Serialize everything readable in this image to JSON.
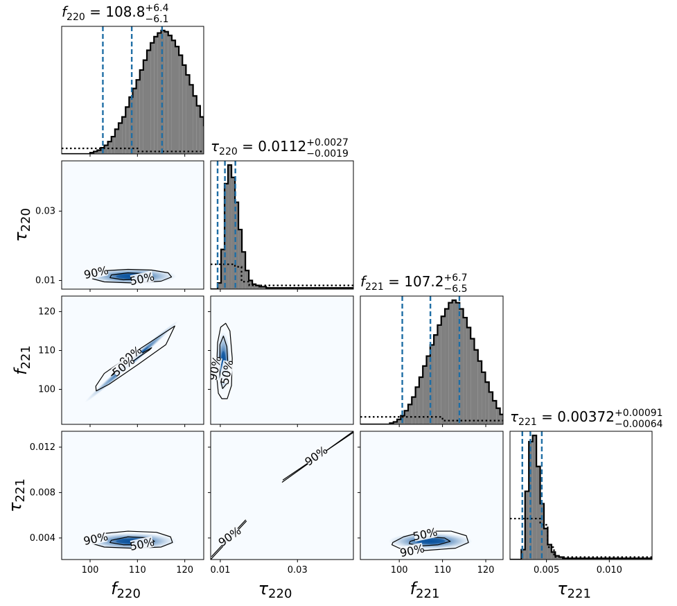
{
  "chart_data": {
    "type": "corner",
    "parameters": [
      {
        "symbol": "f",
        "subscript": "220",
        "label": "f220",
        "range": [
          94,
          124
        ],
        "ticks": [
          100,
          110,
          120
        ],
        "tick_labels": [
          "100",
          "110",
          "120"
        ],
        "median": 108.8,
        "plus": "+6.4",
        "minus": "−6.1",
        "title_value": "108.8",
        "quantiles": [
          102.7,
          108.8,
          115.2
        ]
      },
      {
        "symbol": "τ",
        "subscript": "220",
        "label": "τ220",
        "range": [
          0.0075,
          0.0445
        ],
        "ticks": [
          0.01,
          0.03
        ],
        "tick_labels": [
          "0.01",
          "0.03"
        ],
        "median": 0.0112,
        "plus": "+0.0027",
        "minus": "−0.0019",
        "title_value": "0.0112",
        "quantiles": [
          0.0093,
          0.0112,
          0.0139
        ]
      },
      {
        "symbol": "f",
        "subscript": "221",
        "label": "f221",
        "range": [
          91,
          124
        ],
        "ticks": [
          100,
          110,
          120
        ],
        "tick_labels": [
          "100",
          "110",
          "120"
        ],
        "median": 107.2,
        "plus": "+6.7",
        "minus": "−6.5",
        "title_value": "107.2",
        "quantiles": [
          100.7,
          107.2,
          113.9
        ]
      },
      {
        "symbol": "τ",
        "subscript": "221",
        "label": "τ221",
        "range": [
          0.0021,
          0.0134
        ],
        "ticks": [
          0.005,
          0.01
        ],
        "tick_labels": [
          "0.005",
          "0.010"
        ],
        "median": 0.00372,
        "plus": "+0.00091",
        "minus": "−0.00064",
        "title_value": "0.00372",
        "quantiles": [
          0.00308,
          0.00372,
          0.00463
        ]
      }
    ],
    "row_ticks": [
      null,
      {
        "ticks": [
          0.01,
          0.03
        ],
        "tick_labels": [
          "0.01",
          "0.03"
        ]
      },
      {
        "ticks": [
          100,
          110,
          120
        ],
        "tick_labels": [
          "100",
          "110",
          "120"
        ]
      },
      {
        "ticks": [
          0.004,
          0.008,
          0.012
        ],
        "tick_labels": [
          "0.004",
          "0.008",
          "0.012"
        ]
      }
    ],
    "contour_levels": [
      "50%",
      "90%"
    ],
    "colors": {
      "hist_fill": "#808080",
      "hist_edge": "#000000",
      "quantile_line": "#1f6ea5",
      "prior_line": "#000000",
      "density": "#08519c",
      "background": "#f7fbff"
    },
    "diagonal_panels": [
      {
        "param": 0,
        "prior_level": 0.045,
        "hist": {
          "start": 94,
          "bin": 0.75,
          "values": [
            0,
            0,
            0,
            0,
            0,
            0,
            0,
            0,
            0.01,
            0.02,
            0.03,
            0.05,
            0.07,
            0.1,
            0.14,
            0.2,
            0.25,
            0.3,
            0.38,
            0.46,
            0.53,
            0.6,
            0.68,
            0.76,
            0.84,
            0.9,
            0.95,
            0.98,
            1,
            0.99,
            0.96,
            0.92,
            0.87,
            0.8,
            0.72,
            0.64,
            0.56,
            0.47,
            0.39,
            0.3,
            0.23,
            0.17,
            0.12,
            0.08,
            0.05,
            0.03,
            0.02,
            0.01,
            0.01,
            0,
            0,
            0,
            0,
            0,
            0,
            0,
            0,
            0,
            0,
            0
          ]
        },
        "prior": [
          {
            "x": 94,
            "y": 0.045
          },
          {
            "x": 110,
            "y": 0.045
          },
          {
            "x": 110,
            "y": 0.02
          },
          {
            "x": 124,
            "y": 0.02
          }
        ]
      },
      {
        "param": 1,
        "prior_level": 0.2,
        "hist": {
          "start": 0.0075,
          "bin": 0.0009,
          "values": [
            0,
            0,
            0.05,
            0.32,
            0.85,
            1,
            0.9,
            0.7,
            0.48,
            0.3,
            0.15,
            0.07,
            0.04,
            0.03,
            0.02,
            0.02,
            0.01,
            0.01,
            0.01,
            0.01,
            0.01,
            0.01,
            0.01,
            0.01,
            0.01,
            0.01,
            0.01,
            0.01,
            0.01,
            0.01,
            0.01,
            0.01,
            0.01,
            0.01,
            0.01,
            0.01,
            0.01,
            0.01,
            0.01,
            0.01,
            0.01
          ]
        },
        "prior": [
          {
            "x": 0.0075,
            "y": 0.2
          },
          {
            "x": 0.0138,
            "y": 0.2
          },
          {
            "x": 0.0138,
            "y": 0.18
          },
          {
            "x": 0.0155,
            "y": 0.18
          },
          {
            "x": 0.0155,
            "y": 0.06
          },
          {
            "x": 0.0175,
            "y": 0.06
          },
          {
            "x": 0.0175,
            "y": 0.03
          },
          {
            "x": 0.0445,
            "y": 0.03
          }
        ]
      },
      {
        "param": 2,
        "prior_level": 0.06,
        "hist": {
          "start": 91,
          "bin": 0.85,
          "values": [
            0,
            0,
            0,
            0,
            0,
            0,
            0,
            0,
            0.01,
            0.02,
            0.04,
            0.07,
            0.11,
            0.16,
            0.22,
            0.3,
            0.38,
            0.47,
            0.55,
            0.64,
            0.72,
            0.8,
            0.87,
            0.93,
            0.98,
            1,
            0.98,
            0.93,
            0.86,
            0.78,
            0.69,
            0.6,
            0.51,
            0.42,
            0.34,
            0.26,
            0.19,
            0.13,
            0.08,
            0.05,
            0.03,
            0.02,
            0.01,
            0,
            0,
            0,
            0,
            0,
            0,
            0
          ]
        },
        "prior": [
          {
            "x": 91,
            "y": 0.06
          },
          {
            "x": 110,
            "y": 0.06
          },
          {
            "x": 110,
            "y": 0.03
          },
          {
            "x": 124,
            "y": 0.03
          }
        ]
      },
      {
        "param": 3,
        "prior_level": 0.33,
        "hist": {
          "start": 0.0021,
          "bin": 0.0003,
          "values": [
            0,
            0,
            0,
            0.08,
            0.55,
            0.95,
            1,
            0.75,
            0.45,
            0.25,
            0.12,
            0.06,
            0.03,
            0.02,
            0.01,
            0.01,
            0.01,
            0.01,
            0.01,
            0.01,
            0.01,
            0.01,
            0.01,
            0.01,
            0.01,
            0.01,
            0.01,
            0.01,
            0.01,
            0.01,
            0.01,
            0.01,
            0.01,
            0.01,
            0.01,
            0.01,
            0.01,
            0.01
          ]
        },
        "prior": [
          {
            "x": 0.0021,
            "y": 0.33
          },
          {
            "x": 0.0045,
            "y": 0.33
          },
          {
            "x": 0.0045,
            "y": 0.28
          },
          {
            "x": 0.0051,
            "y": 0.28
          },
          {
            "x": 0.0051,
            "y": 0.1
          },
          {
            "x": 0.0056,
            "y": 0.1
          },
          {
            "x": 0.0056,
            "y": 0.02
          },
          {
            "x": 0.0134,
            "y": 0.02
          }
        ]
      }
    ],
    "offdiagonal_panels": [
      {
        "row": 1,
        "col": 0,
        "x_param": 0,
        "y_param": 1,
        "density": {
          "cx": 108.8,
          "cy": 0.0112,
          "sx": 4.5,
          "sy": 0.0011,
          "rho": 0.1
        },
        "contour90": [
          [
            100.5,
            0.0118
          ],
          [
            103,
            0.0128
          ],
          [
            108,
            0.0132
          ],
          [
            113,
            0.013
          ],
          [
            116.5,
            0.0122
          ],
          [
            117.2,
            0.011
          ],
          [
            115,
            0.0098
          ],
          [
            109,
            0.0093
          ],
          [
            103,
            0.0096
          ],
          [
            100.5,
            0.0105
          ]
        ],
        "contour50": [
          [
            104.5,
            0.0116
          ],
          [
            108,
            0.0122
          ],
          [
            112,
            0.0119
          ],
          [
            113.2,
            0.0112
          ],
          [
            111,
            0.0104
          ],
          [
            107,
            0.0102
          ],
          [
            104.2,
            0.0108
          ]
        ],
        "labels": [
          {
            "text": "90%",
            "x": 101.3,
            "y": 0.0122,
            "rot": -12
          },
          {
            "text": "50%",
            "x": 111,
            "y": 0.01035,
            "rot": -12
          }
        ]
      },
      {
        "row": 2,
        "col": 0,
        "x_param": 0,
        "y_param": 2,
        "density": {
          "cx": 108.8,
          "cy": 107.2,
          "sx": 4.5,
          "sy": 4.8,
          "rho": 0.995
        },
        "contour90": [
          [
            101.3,
            99.6
          ],
          [
            104,
            101.3
          ],
          [
            110,
            106.3
          ],
          [
            116,
            111.5
          ],
          [
            117.9,
            116.3
          ],
          [
            115.5,
            114.4
          ],
          [
            109,
            109.2
          ],
          [
            103,
            104.1
          ],
          [
            101.2,
            100.8
          ]
        ],
        "contour50": [
          [
            104.5,
            103.5
          ],
          [
            108,
            106.4
          ],
          [
            112.5,
            110.1
          ],
          [
            113,
            110.7
          ],
          [
            109.5,
            108.3
          ],
          [
            105.5,
            104.9
          ]
        ],
        "labels": [
          {
            "text": "90%",
            "x": 108.6,
            "y": 108.5,
            "rot": -38
          },
          {
            "text": "50%",
            "x": 107.1,
            "y": 105.8,
            "rot": -38
          }
        ]
      },
      {
        "row": 2,
        "col": 1,
        "x_param": 1,
        "y_param": 2,
        "density": {
          "cx": 0.0108,
          "cy": 107.2,
          "sx": 0.00085,
          "sy": 3.6,
          "rho": 0.0
        },
        "contour90": [
          [
            0.0093,
            112
          ],
          [
            0.0101,
            116
          ],
          [
            0.0114,
            117
          ],
          [
            0.0125,
            115
          ],
          [
            0.0131,
            108
          ],
          [
            0.0129,
            101
          ],
          [
            0.0118,
            97.6
          ],
          [
            0.0104,
            97.6
          ],
          [
            0.0095,
            99
          ],
          [
            0.009,
            104
          ]
        ],
        "contour50": [
          [
            0.0099,
            111.5
          ],
          [
            0.0108,
            113.7
          ],
          [
            0.0117,
            111
          ],
          [
            0.012,
            106
          ],
          [
            0.0117,
            101.5
          ],
          [
            0.0106,
            100.2
          ],
          [
            0.0099,
            103
          ]
        ],
        "labels": [
          {
            "text": "90%",
            "x": 0.0087,
            "y": 105.4,
            "rot": -78
          },
          {
            "text": "50%",
            "x": 0.0118,
            "y": 104.4,
            "rot": -78
          }
        ]
      },
      {
        "row": 3,
        "col": 0,
        "x_param": 0,
        "y_param": 3,
        "density": {
          "cx": 108.8,
          "cy": 0.00372,
          "sx": 4.5,
          "sy": 0.00035,
          "rho": 0.1
        },
        "contour90": [
          [
            100.5,
            0.0039
          ],
          [
            103,
            0.0044
          ],
          [
            108,
            0.0046
          ],
          [
            114,
            0.0045
          ],
          [
            117,
            0.0041
          ],
          [
            117.4,
            0.0036
          ],
          [
            115,
            0.0032
          ],
          [
            109,
            0.0031
          ],
          [
            103,
            0.0032
          ],
          [
            100.5,
            0.0035
          ]
        ],
        "contour50": [
          [
            104.5,
            0.0038
          ],
          [
            108,
            0.0041
          ],
          [
            112.5,
            0.004
          ],
          [
            113.6,
            0.0037
          ],
          [
            111,
            0.0034
          ],
          [
            107,
            0.0034
          ],
          [
            104.2,
            0.0036
          ]
        ],
        "labels": [
          {
            "text": "90%",
            "x": 101.2,
            "y": 0.0039,
            "rot": -12
          },
          {
            "text": "50%",
            "x": 111,
            "y": 0.00342,
            "rot": -12
          }
        ]
      },
      {
        "row": 3,
        "col": 1,
        "x_param": 1,
        "y_param": 3,
        "density": null,
        "segments": [
          [
            [
              0.0075,
              0.0021
            ],
            [
              0.0168,
              0.0055
            ]
          ],
          [
            [
              0.0077,
              0.00235
            ],
            [
              0.0166,
              0.0056
            ]
          ],
          [
            [
              0.026,
              0.0089
            ],
            [
              0.0445,
              0.0134
            ]
          ],
          [
            [
              0.0262,
              0.0091
            ],
            [
              0.0445,
              0.0133
            ]
          ]
        ],
        "labels": [
          {
            "text": "90%",
            "x": 0.0125,
            "y": 0.0041,
            "rot": -36
          },
          {
            "text": "90%",
            "x": 0.0349,
            "y": 0.0112,
            "rot": -36
          }
        ]
      },
      {
        "row": 3,
        "col": 2,
        "x_param": 2,
        "y_param": 3,
        "density": {
          "cx": 107.2,
          "cy": 0.00372,
          "sx": 4.6,
          "sy": 0.00035,
          "rho": 0.1
        },
        "contour90": [
          [
            98.5,
            0.0036
          ],
          [
            101,
            0.0041
          ],
          [
            106,
            0.0046
          ],
          [
            112,
            0.0046
          ],
          [
            115.5,
            0.0042
          ],
          [
            116,
            0.0036
          ],
          [
            113,
            0.0031
          ],
          [
            106,
            0.0029
          ],
          [
            100,
            0.0031
          ],
          [
            98.3,
            0.0034
          ]
        ],
        "contour50": [
          [
            102.5,
            0.0037
          ],
          [
            106,
            0.0041
          ],
          [
            110.5,
            0.004
          ],
          [
            111.8,
            0.0037
          ],
          [
            109,
            0.0034
          ],
          [
            105,
            0.0033
          ],
          [
            102.3,
            0.0035
          ]
        ],
        "labels": [
          {
            "text": "50%",
            "x": 106,
            "y": 0.0043,
            "rot": -12
          },
          {
            "text": "90%",
            "x": 103,
            "y": 0.00285,
            "rot": -12
          }
        ]
      }
    ]
  }
}
